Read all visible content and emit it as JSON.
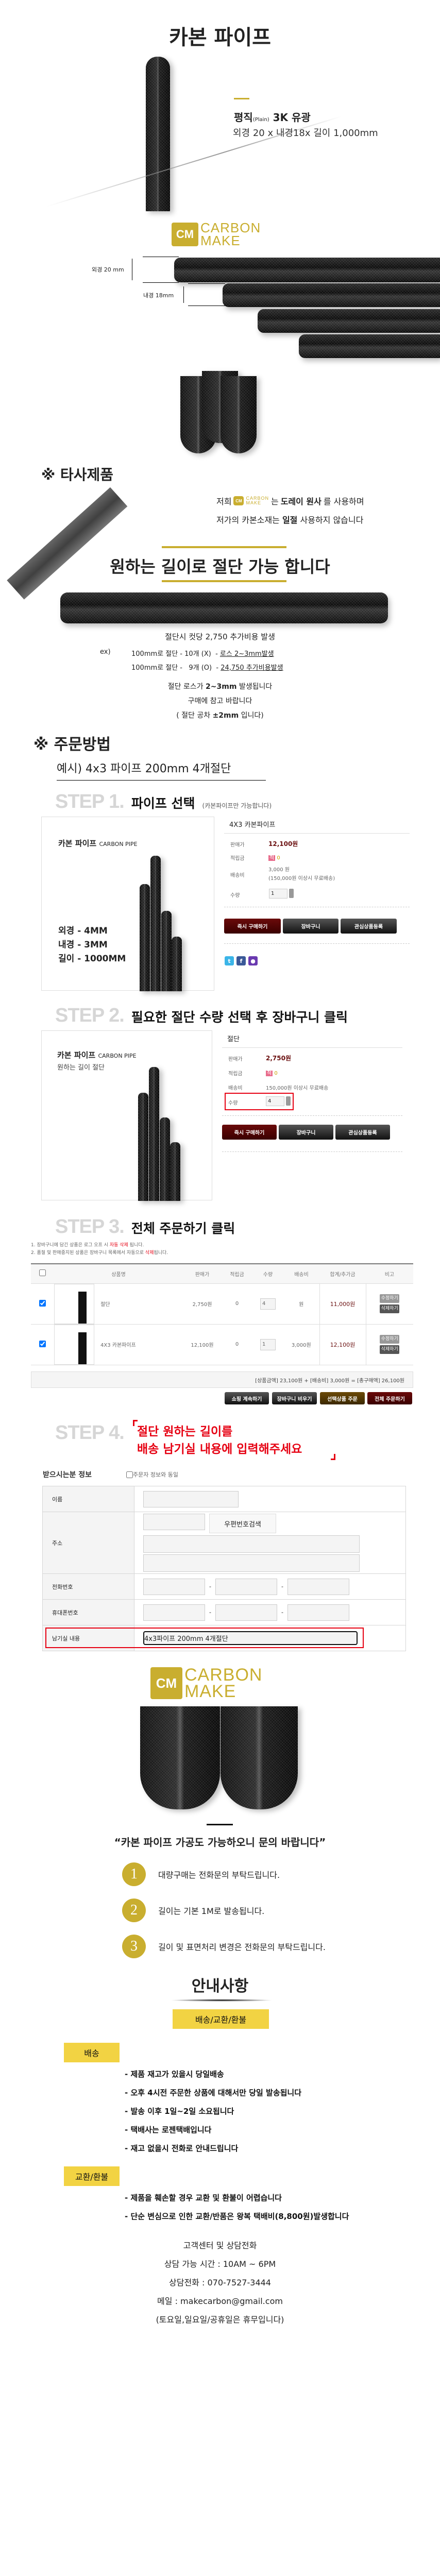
{
  "brand": {
    "logo_top": "CARBON",
    "logo_bottom": "MAKE",
    "mark": "CM",
    "gold": "#c9ae2f"
  },
  "hero": {
    "title": "카본 파이프",
    "spec_title": "평직",
    "spec_title_small": "(Plain)",
    "spec_title_rest": "3K 유광",
    "spec_dims": "외경 20 x 내경18x 길이 1,000mm"
  },
  "dimensions": {
    "outer": "외경 20 mm",
    "inner": "내경 18mm"
  },
  "competitor": {
    "heading": "※ 타사제품",
    "line1_pre": "저희",
    "line1_mid": "는",
    "line1_bold": "도레이 원사",
    "line1_post": "를 사용하며",
    "line2_pre": "저가의 카본소재는",
    "line2_bold": "일절",
    "line2_post": "사용하지 않습니다"
  },
  "cutting": {
    "heading": "원하는 길이로 절단 가능 합니다",
    "fee": "절단시 컷당 2,750 추가비용 발생",
    "ex_label": "ex)",
    "examples": [
      {
        "text": "100mm로 절단 - 10개 (X)",
        "note": "- ",
        "note_u": "로스 2~3mm발생"
      },
      {
        "text": "100mm로 절단 -   9개 (O)",
        "note": "- ",
        "note_u": "24,750 추가비용발생"
      }
    ],
    "loss_pre": "절단  로스가",
    "loss_bold": "2~3mm",
    "loss_post": "발생됩니다",
    "ref": "구매에 참고 바랍니다",
    "tol_pre": "( 절단 공차",
    "tol_bold": "±2mm",
    "tol_post": "입니다)"
  },
  "order": {
    "heading": "※ 주문방법",
    "example": "예시)  4x3 파이프 200mm 4개절단"
  },
  "step1": {
    "num": "STEP 1.",
    "title": "파이프 선택",
    "sub": "(카본파이프만 가능합니다)",
    "image": {
      "title": "카본 파이프",
      "title_en": "CARBON PIPE",
      "specs": [
        "외경 - 4MM",
        "내경 - 3MM",
        "길이 - 1000MM"
      ]
    },
    "product": {
      "name": "4X3 카본파이프",
      "price_label": "판매가",
      "price": "12,100원",
      "points_label": "적립금",
      "points_badge": "적",
      "points": "0",
      "ship_label": "배송비",
      "ship": "3,000 원",
      "ship_note": "(150,000원 이상시 무료배송)",
      "qty_label": "수량",
      "qty": "1"
    },
    "buttons": {
      "buy": "즉시 구매하기",
      "cart": "장바구니",
      "wish": "관심상품등록"
    }
  },
  "step2": {
    "num": "STEP 2.",
    "title": "필요한 절단 수량 선택 후 장바구니 클릭",
    "image": {
      "title": "카본 파이프",
      "title_en": "CARBON PIPE",
      "sub": "원하는 길이 절단"
    },
    "product": {
      "name": "절단",
      "price_label": "판매가",
      "price": "2,750원",
      "points_label": "적립금",
      "points_badge": "적",
      "points": "0",
      "ship_label": "배송비",
      "ship": "150,000원 이상시 무료배송",
      "qty_label": "수량",
      "qty": "4"
    },
    "buttons": {
      "buy": "즉시 구매하기",
      "cart": "장바구니",
      "wish": "관심상품등록"
    }
  },
  "step3": {
    "num": "STEP 3.",
    "title": "전체 주문하기 클릭",
    "notes": [
      {
        "pre": "1. 장바구니에 담긴 상품은 로그 오프 시 ",
        "red": "자동 삭제",
        "post": " 됩니다."
      },
      {
        "pre": "2. 품절 및 판매중지된 상품은 장바구니 목록에서 자동으로 ",
        "red": "삭제",
        "post": "됩니다."
      }
    ],
    "columns": [
      "상품명",
      "판매가",
      "적립금",
      "수량",
      "배송비",
      "합계/추가금",
      "비고"
    ],
    "rows": [
      {
        "name": "절단",
        "price": "2,750원",
        "points": "0",
        "qty": "4",
        "ship": "원",
        "total": "11,000원",
        "checked": true
      },
      {
        "name": "4X3 카본파이프",
        "price": "12,100원",
        "points": "0",
        "qty": "1",
        "ship": "3,000원",
        "total": "12,100원",
        "checked": true
      }
    ],
    "row_edit": "수정하기",
    "row_delete": "삭제하기",
    "summary": "[상품금액] 23,100원 + [배송비] 3,000원 = [총구매액] 26,100원",
    "buttons": {
      "continue": "쇼핑 계속하기",
      "empty": "장바구니 비우기",
      "selected": "선택상품 주문",
      "all": "전체 주문하기"
    }
  },
  "step4": {
    "num": "STEP 4.",
    "line1": "절단 원하는 길이를",
    "line2": "배송 남기실 내용에 입력해주세요",
    "form": {
      "title": "받으시는분 정보",
      "same": "주문자 정보와 동일",
      "name": "이름",
      "address": "주소",
      "zip_button": "우편번호검색",
      "phone": "전화번호",
      "mobile": "휴대폰번호",
      "memo": "남기실 내용",
      "memo_value": "4x3파이프 200mm 4개절단"
    }
  },
  "processing": {
    "quote": "“카본 파이프 가공도 가능하오니 문의 바랍니다”",
    "items": [
      {
        "n": "1",
        "text": "대량구매는 전화문의 부탁드립니다."
      },
      {
        "n": "2",
        "text": "길이는 기본 1M로 발송됩니다."
      },
      {
        "n": "3",
        "text": "길이 및 표면처리 변경은 전화문의 부탁드립니다."
      }
    ]
  },
  "notice": {
    "heading": "안내사항",
    "tab": "배송/교환/환불",
    "shipping": {
      "label": "배송",
      "items": [
        "- 제품 재고가 있을시 당일배송",
        "- 오후 4시전 주문한 상품에 대해서만 당일 발송됩니다",
        "- 발송 이후 1일~2일 소요됩니다",
        "- 택배사는 로젠택배입니다",
        "- 재고 없을시 전화로 안내드립니다"
      ]
    },
    "refund": {
      "label": "교환/환불",
      "items": [
        "- 제품을 훼손할 경우 교환 및 환불이 어렵습니다",
        "- 단순 변심으로 인한 교환/반품은 왕복 택배비(8,800원)발생합니다"
      ]
    },
    "contact": [
      "고객센터 및 상담전화",
      "상담 가능 시간 : 10AM ~ 6PM",
      "상담전화 : 070-7527-3444",
      "메일  : makecarbon@gmail.com",
      "(토요일,일요일/공휴일은 휴무입니다)"
    ]
  },
  "colors": {
    "accent_red": "#e60012",
    "price": "#6a0f0f",
    "badge_yellow": "#f2d343"
  }
}
